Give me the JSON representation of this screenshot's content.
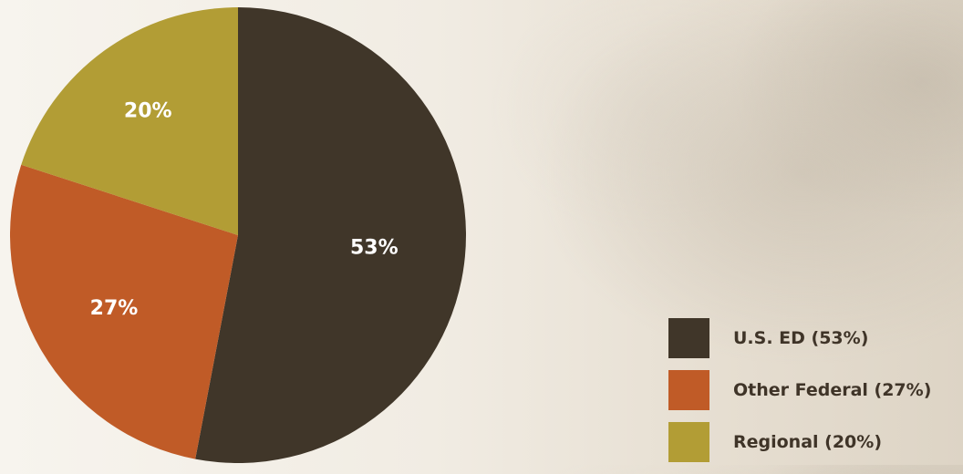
{
  "chart_data": {
    "type": "pie",
    "slices": [
      {
        "label": "U.S. ED (53%)",
        "value": 53,
        "data_label": "53%",
        "color": "#403629"
      },
      {
        "label": "Other Federal (27%)",
        "value": 27,
        "data_label": "27%",
        "color": "#c05b27"
      },
      {
        "label": "Regional (20%)",
        "value": 20,
        "data_label": "20%",
        "color": "#b29d35"
      }
    ],
    "start_angle": "12 o'clock",
    "direction": "clockwise",
    "legend_position": "bottom-right"
  }
}
